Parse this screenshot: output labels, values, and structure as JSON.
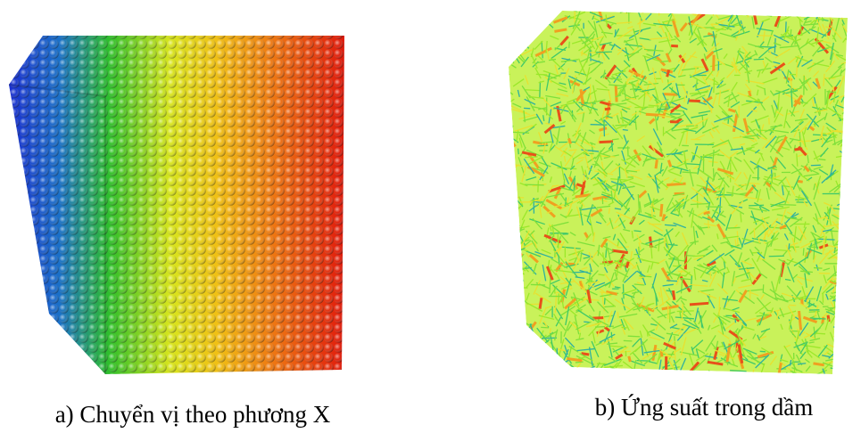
{
  "figure": {
    "panels": [
      {
        "caption": "a) Chuyển vị theo phương X"
      },
      {
        "caption": "b) Ứng suất trong dầm"
      }
    ]
  }
}
